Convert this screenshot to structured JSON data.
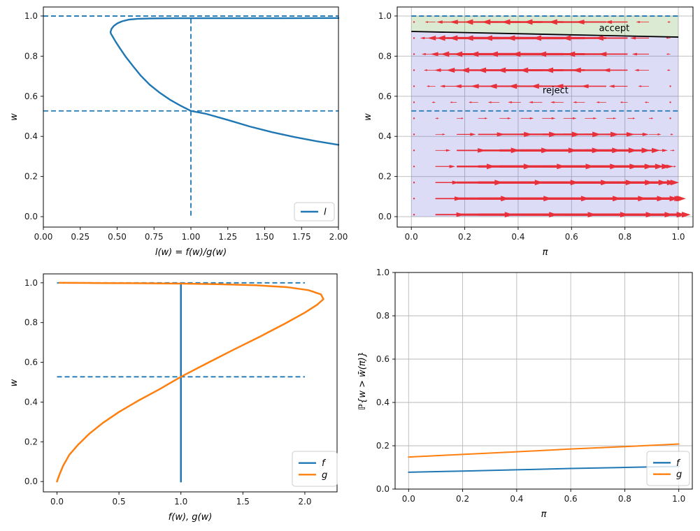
{
  "figure": {
    "background": "#ffffff"
  },
  "chart_data": [
    {
      "id": "likelihood_ratio",
      "type": "line",
      "xlabel": "l(w) = f(w)/g(w)",
      "ylabel": "w",
      "xlim": [
        0,
        2
      ],
      "ylim": [
        -0.052,
        1.045
      ],
      "grid": false,
      "xticks": [
        {
          "v": 0,
          "label": "0.00"
        },
        {
          "v": 0.25,
          "label": "0.25"
        },
        {
          "v": 0.5,
          "label": "0.50"
        },
        {
          "v": 0.75,
          "label": "0.75"
        },
        {
          "v": 1.0,
          "label": "1.00"
        },
        {
          "v": 1.25,
          "label": "1.25"
        },
        {
          "v": 1.5,
          "label": "1.50"
        },
        {
          "v": 1.75,
          "label": "1.75"
        },
        {
          "v": 2.0,
          "label": "2.00"
        }
      ],
      "yticks": [
        {
          "v": 0,
          "label": "0.0"
        },
        {
          "v": 0.2,
          "label": "0.2"
        },
        {
          "v": 0.4,
          "label": "0.4"
        },
        {
          "v": 0.6,
          "label": "0.6"
        },
        {
          "v": 0.8,
          "label": "0.8"
        },
        {
          "v": 1.0,
          "label": "1.0"
        }
      ],
      "guides": [
        {
          "kind": "hline",
          "y": 1.0,
          "x0": 0,
          "x1": 2,
          "color": "#1f77b4"
        },
        {
          "kind": "hline",
          "y": 0.527,
          "x0": 0,
          "x1": 2,
          "color": "#1f77b4"
        },
        {
          "kind": "vline",
          "x": 1.0,
          "y0": 0.005,
          "y1": 1.0,
          "color": "#1f77b4"
        }
      ],
      "series": [
        {
          "name": "l",
          "color": "#1f77b4",
          "points": [
            [
              2.0,
              0.358
            ],
            [
              1.85,
              0.376
            ],
            [
              1.7,
              0.397
            ],
            [
              1.55,
              0.421
            ],
            [
              1.4,
              0.449
            ],
            [
              1.25,
              0.482
            ],
            [
              1.1,
              0.513
            ],
            [
              1.0,
              0.527
            ],
            [
              0.93,
              0.553
            ],
            [
              0.86,
              0.582
            ],
            [
              0.79,
              0.617
            ],
            [
              0.72,
              0.658
            ],
            [
              0.66,
              0.703
            ],
            [
              0.61,
              0.748
            ],
            [
              0.56,
              0.795
            ],
            [
              0.52,
              0.838
            ],
            [
              0.49,
              0.872
            ],
            [
              0.47,
              0.897
            ],
            [
              0.458,
              0.912
            ],
            [
              0.455,
              0.92
            ],
            [
              0.462,
              0.936
            ],
            [
              0.478,
              0.951
            ],
            [
              0.503,
              0.964
            ],
            [
              0.535,
              0.974
            ],
            [
              0.58,
              0.982
            ],
            [
              0.64,
              0.986
            ],
            [
              0.73,
              0.988
            ],
            [
              0.9,
              0.989
            ],
            [
              1.2,
              0.989
            ],
            [
              1.6,
              0.989
            ],
            [
              2.0,
              0.99
            ]
          ]
        }
      ],
      "legend": {
        "loc": "lower right",
        "items": [
          {
            "label": "l",
            "color": "#1f77b4"
          }
        ]
      }
    },
    {
      "id": "phase_diagram",
      "type": "quiver",
      "xlabel": "π",
      "ylabel": "w",
      "xlim": [
        -0.053,
        1.055
      ],
      "ylim": [
        -0.052,
        1.045
      ],
      "grid": true,
      "xticks": [
        {
          "v": 0,
          "label": "0.0"
        },
        {
          "v": 0.2,
          "label": "0.2"
        },
        {
          "v": 0.4,
          "label": "0.4"
        },
        {
          "v": 0.6,
          "label": "0.6"
        },
        {
          "v": 0.8,
          "label": "0.8"
        },
        {
          "v": 1.0,
          "label": "1.0"
        }
      ],
      "yticks": [
        {
          "v": 0,
          "label": "0.0"
        },
        {
          "v": 0.2,
          "label": "0.2"
        },
        {
          "v": 0.4,
          "label": "0.4"
        },
        {
          "v": 0.6,
          "label": "0.6"
        },
        {
          "v": 0.8,
          "label": "0.8"
        },
        {
          "v": 1.0,
          "label": "1.0"
        }
      ],
      "regions": [
        {
          "name": "accept-region",
          "color": "rgba(110,170,80,0.25)",
          "polygon": [
            [
              0,
              0.923
            ],
            [
              1,
              0.895
            ],
            [
              1,
              1.0
            ],
            [
              0,
              1.0
            ]
          ]
        },
        {
          "name": "reject-region",
          "color": "rgba(70,70,215,0.19)",
          "polygon": [
            [
              0,
              0
            ],
            [
              1,
              0
            ],
            [
              1,
              0.895
            ],
            [
              0,
              0.923
            ]
          ]
        }
      ],
      "boundary": {
        "color": "#000000",
        "points": [
          [
            0,
            0.923
          ],
          [
            1,
            0.895
          ]
        ]
      },
      "guides": [
        {
          "kind": "hline",
          "y": 1.0,
          "x0": 0,
          "x1": 1,
          "color": "#1f77b4"
        },
        {
          "kind": "hline",
          "y": 0.527,
          "x0": 0,
          "x1": 1,
          "color": "#1f77b4"
        }
      ],
      "quiver": {
        "color": "#e8222a",
        "scale": 0.42,
        "x": [
          0.01,
          0.09,
          0.17,
          0.25,
          0.33,
          0.41,
          0.49,
          0.57,
          0.65,
          0.73,
          0.81,
          0.89,
          0.97
        ],
        "rows": [
          {
            "w": 0.01,
            "u": 1.0
          },
          {
            "w": 0.09,
            "u": 0.93
          },
          {
            "w": 0.17,
            "u": 0.82
          },
          {
            "w": 0.25,
            "u": 0.68
          },
          {
            "w": 0.33,
            "u": 0.52
          },
          {
            "w": 0.41,
            "u": 0.34
          },
          {
            "w": 0.49,
            "u": 0.12
          },
          {
            "w": 0.57,
            "u": -0.12
          },
          {
            "w": 0.65,
            "u": -0.3
          },
          {
            "w": 0.73,
            "u": -0.4
          },
          {
            "w": 0.81,
            "u": -0.47
          },
          {
            "w": 0.89,
            "u": -0.52
          },
          {
            "w": 0.97,
            "u": -0.36
          }
        ]
      },
      "annotations": [
        {
          "text": "accept",
          "x": 0.76,
          "y": 0.924
        },
        {
          "text": "reject",
          "x": 0.54,
          "y": 0.615
        }
      ]
    },
    {
      "id": "densities",
      "type": "line",
      "xlabel": "f(w), g(w)",
      "ylabel": "w",
      "xlim": [
        -0.11,
        2.26
      ],
      "ylim": [
        -0.052,
        1.045
      ],
      "grid": false,
      "xticks": [
        {
          "v": 0,
          "label": "0.0"
        },
        {
          "v": 0.5,
          "label": "0.5"
        },
        {
          "v": 1.0,
          "label": "1.0"
        },
        {
          "v": 1.5,
          "label": "1.5"
        },
        {
          "v": 2.0,
          "label": "2.0"
        }
      ],
      "yticks": [
        {
          "v": 0,
          "label": "0.0"
        },
        {
          "v": 0.2,
          "label": "0.2"
        },
        {
          "v": 0.4,
          "label": "0.4"
        },
        {
          "v": 0.6,
          "label": "0.6"
        },
        {
          "v": 0.8,
          "label": "0.8"
        },
        {
          "v": 1.0,
          "label": "1.0"
        }
      ],
      "guides": [
        {
          "kind": "hline",
          "y": 1.0,
          "x0": 0,
          "x1": 2,
          "color": "#1f77b4"
        },
        {
          "kind": "hline",
          "y": 0.527,
          "x0": 0,
          "x1": 2,
          "color": "#1f77b4"
        }
      ],
      "series": [
        {
          "name": "f",
          "color": "#1f77b4",
          "points": [
            [
              1.0,
              0.0
            ],
            [
              1.0,
              0.99
            ]
          ]
        },
        {
          "name": "g",
          "color": "#ff7f0e",
          "points": [
            [
              0.0,
              0.0
            ],
            [
              0.02,
              0.035
            ],
            [
              0.05,
              0.08
            ],
            [
              0.1,
              0.135
            ],
            [
              0.17,
              0.185
            ],
            [
              0.26,
              0.24
            ],
            [
              0.37,
              0.295
            ],
            [
              0.5,
              0.35
            ],
            [
              0.65,
              0.405
            ],
            [
              0.82,
              0.462
            ],
            [
              1.0,
              0.527
            ],
            [
              1.2,
              0.592
            ],
            [
              1.42,
              0.662
            ],
            [
              1.64,
              0.73
            ],
            [
              1.84,
              0.795
            ],
            [
              2.0,
              0.85
            ],
            [
              2.1,
              0.89
            ],
            [
              2.15,
              0.918
            ],
            [
              2.13,
              0.942
            ],
            [
              2.03,
              0.963
            ],
            [
              1.86,
              0.978
            ],
            [
              1.6,
              0.988
            ],
            [
              1.3,
              0.993
            ],
            [
              1.0,
              0.996
            ],
            [
              0.65,
              0.998
            ],
            [
              0.3,
              0.999
            ],
            [
              0.02,
              1.0
            ]
          ]
        }
      ],
      "legend": {
        "loc": "lower right",
        "items": [
          {
            "label": "f",
            "color": "#1f77b4"
          },
          {
            "label": "g",
            "color": "#ff7f0e"
          }
        ]
      }
    },
    {
      "id": "tail_probability",
      "type": "line",
      "xlabel": "π",
      "ylabel": "ℙ{w > w̄(π)}",
      "xlim": [
        -0.05,
        1.05
      ],
      "ylim": [
        0,
        1
      ],
      "grid": true,
      "xticks": [
        {
          "v": 0,
          "label": "0.0"
        },
        {
          "v": 0.2,
          "label": "0.2"
        },
        {
          "v": 0.4,
          "label": "0.4"
        },
        {
          "v": 0.6,
          "label": "0.6"
        },
        {
          "v": 0.8,
          "label": "0.8"
        },
        {
          "v": 1.0,
          "label": "1.0"
        }
      ],
      "yticks": [
        {
          "v": 0,
          "label": "0.0"
        },
        {
          "v": 0.2,
          "label": "0.2"
        },
        {
          "v": 0.4,
          "label": "0.4"
        },
        {
          "v": 0.6,
          "label": "0.6"
        },
        {
          "v": 0.8,
          "label": "0.8"
        },
        {
          "v": 1.0,
          "label": "1.0"
        }
      ],
      "series": [
        {
          "name": "f",
          "color": "#1f77b4",
          "points": [
            [
              0.0,
              0.078
            ],
            [
              0.2,
              0.083
            ],
            [
              0.4,
              0.089
            ],
            [
              0.6,
              0.095
            ],
            [
              0.8,
              0.1
            ],
            [
              1.0,
              0.105
            ]
          ]
        },
        {
          "name": "g",
          "color": "#ff7f0e",
          "points": [
            [
              0.0,
              0.148
            ],
            [
              0.2,
              0.16
            ],
            [
              0.4,
              0.172
            ],
            [
              0.6,
              0.185
            ],
            [
              0.8,
              0.196
            ],
            [
              1.0,
              0.208
            ]
          ]
        }
      ],
      "legend": {
        "loc": "lower right",
        "items": [
          {
            "label": "f",
            "color": "#1f77b4"
          },
          {
            "label": "g",
            "color": "#ff7f0e"
          }
        ]
      }
    }
  ]
}
